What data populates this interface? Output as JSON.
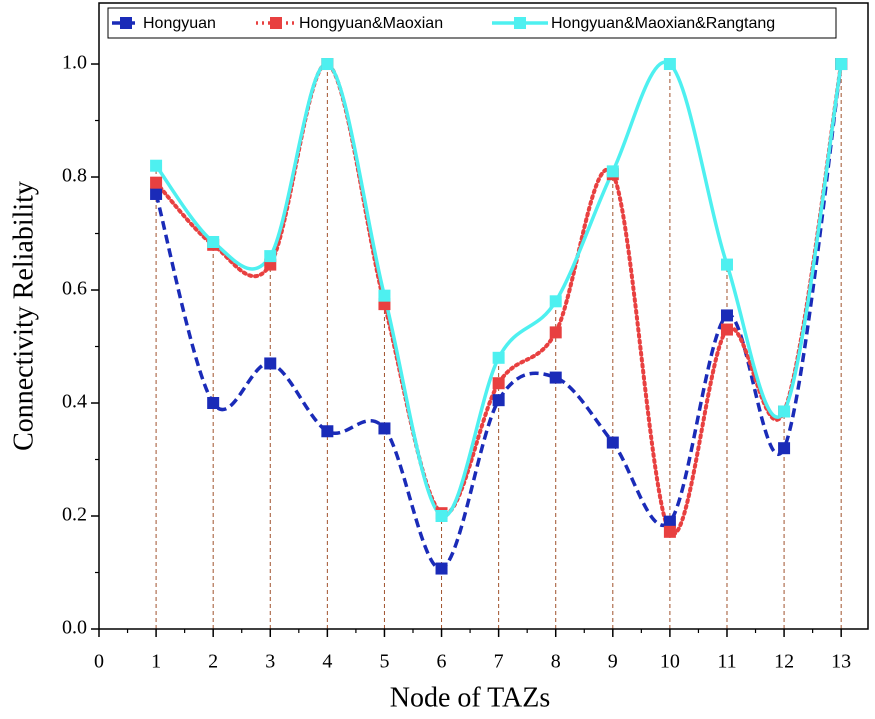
{
  "chart_data": {
    "type": "line",
    "xlabel": "Node of TAZs",
    "ylabel": "Connectivity Reliability",
    "x": [
      1,
      2,
      3,
      4,
      5,
      6,
      7,
      8,
      9,
      10,
      11,
      12,
      13
    ],
    "series": [
      {
        "name": "Hongyuan",
        "color": "#1a2bb8",
        "dash": "dashed",
        "values": [
          0.77,
          0.4,
          0.47,
          0.35,
          0.355,
          0.107,
          0.405,
          0.445,
          0.33,
          0.19,
          0.555,
          0.32,
          1.0
        ]
      },
      {
        "name": "Hongyuan&Maoxian",
        "color": "#e84040",
        "dash": "dotted",
        "values": [
          0.79,
          0.68,
          0.645,
          1.0,
          0.575,
          0.205,
          0.435,
          0.525,
          0.805,
          0.172,
          0.53,
          0.385,
          1.0
        ]
      },
      {
        "name": "Hongyuan&Maoxian&Rangtang",
        "color": "#4ef0f0",
        "dash": "solid",
        "values": [
          0.82,
          0.685,
          0.66,
          1.0,
          0.59,
          0.2,
          0.48,
          0.58,
          0.81,
          1.0,
          0.645,
          0.385,
          1.0
        ]
      }
    ],
    "xlim": [
      0,
      13.47
    ],
    "ylim": [
      0,
      1.108
    ],
    "xticks": [
      0,
      1,
      2,
      3,
      4,
      5,
      6,
      7,
      8,
      9,
      10,
      11,
      12,
      13
    ],
    "yticks": [
      {
        "value": 0,
        "label": "0.0"
      },
      0.2,
      0.4,
      0.6,
      0.8,
      {
        "value": 1,
        "label": "1.0"
      }
    ],
    "legend": "top"
  }
}
